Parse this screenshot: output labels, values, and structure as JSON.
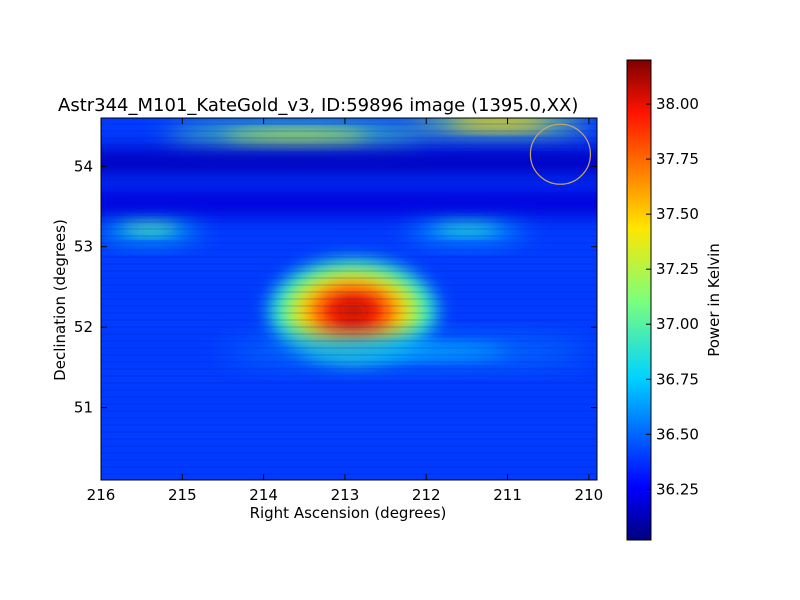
{
  "chart_data": {
    "type": "heatmap",
    "title": "Astr344_M101_KateGold_v3, ID:59896 image (1395.0,XX)",
    "xlabel": "Right Ascension (degrees)",
    "ylabel": "Declination (degrees)",
    "xlim": [
      216.0,
      209.9
    ],
    "ylim": [
      50.1,
      54.6
    ],
    "x_ticks": [
      "216",
      "215",
      "214",
      "213",
      "212",
      "211",
      "210"
    ],
    "y_ticks": [
      "51",
      "52",
      "53",
      "54"
    ],
    "grid": false,
    "colorbar": {
      "label": "Power in Kelvin",
      "range": [
        36.02,
        38.2
      ],
      "ticks": [
        "36.25",
        "36.50",
        "36.75",
        "37.00",
        "37.25",
        "37.50",
        "37.75",
        "38.00"
      ],
      "colormap": "jet"
    },
    "features": [
      {
        "kind": "peak",
        "ra": 212.9,
        "dec": 52.2,
        "value": 38.1
      },
      {
        "kind": "band",
        "dec": 54.35,
        "ra_range": [
          215.2,
          212.0
        ],
        "value": 37.3
      },
      {
        "kind": "band",
        "dec": 54.55,
        "ra_range": [
          212.2,
          210.0
        ],
        "value": 37.5
      },
      {
        "kind": "band",
        "dec": 53.25,
        "ra_range": [
          216.0,
          214.8
        ],
        "value": 37.0
      },
      {
        "kind": "band",
        "dec": 53.25,
        "ra_range": [
          212.2,
          210.8
        ],
        "value": 36.9
      },
      {
        "kind": "band",
        "dec": 51.7,
        "ra_range": [
          214.5,
          210.0
        ],
        "value": 36.7
      },
      {
        "kind": "low",
        "dec": 54.05,
        "value": 36.15
      },
      {
        "kind": "low",
        "dec": 53.55,
        "value": 36.2
      }
    ],
    "background_level": 36.4,
    "beam_marker": {
      "ra": 210.35,
      "dec": 54.15
    }
  }
}
